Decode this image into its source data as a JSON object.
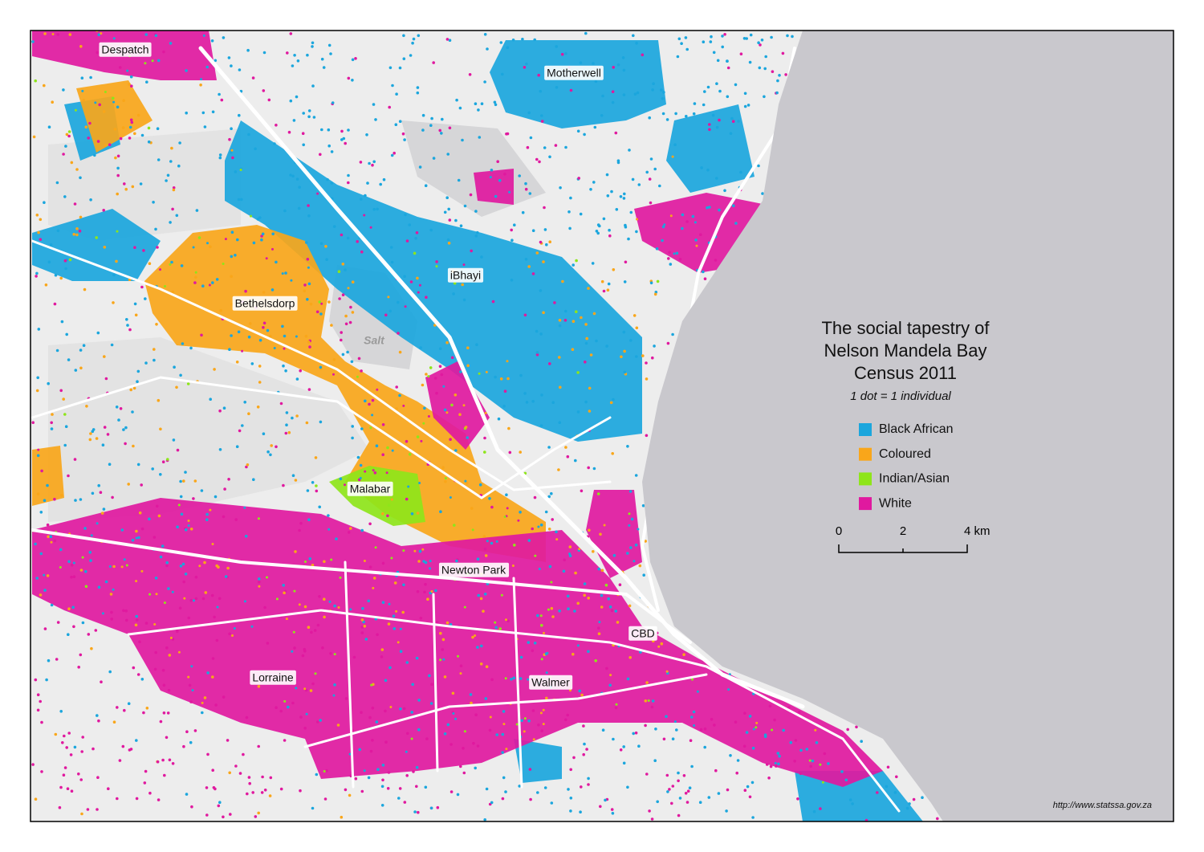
{
  "title": [
    "The social tapestry of",
    "Nelson Mandela Bay",
    "Census 2011"
  ],
  "subtitle": "1 dot = 1 individual",
  "legend": [
    {
      "label": "Black African",
      "color": "#1ba6dd"
    },
    {
      "label": "Coloured",
      "color": "#f9a61a"
    },
    {
      "label": "Indian/Asian",
      "color": "#8ee51a"
    },
    {
      "label": "White",
      "color": "#e0199f"
    }
  ],
  "scale_bar": [
    "0",
    "2",
    "4 km"
  ],
  "places": [
    "Despatch",
    "Motherwell",
    "iBhayi",
    "Bethelsdorp",
    "Malabar",
    "Newton Park",
    "CBD",
    "Lorraine",
    "Walmer"
  ],
  "water_label": "Salt",
  "source": "http://www.statssa.gov.za"
}
